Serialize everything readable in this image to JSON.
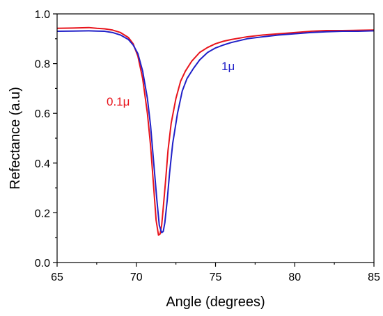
{
  "chart_data": {
    "type": "line",
    "xlabel": "Angle (degrees)",
    "ylabel": "Refectance (a.u)",
    "xlim": [
      65,
      85
    ],
    "ylim": [
      0.0,
      1.0
    ],
    "x_ticks": [
      65,
      70,
      75,
      80,
      85
    ],
    "x_tick_labels": [
      "65",
      "70",
      "75",
      "80",
      "85"
    ],
    "y_ticks": [
      0.0,
      0.2,
      0.4,
      0.6,
      0.8,
      1.0
    ],
    "y_tick_labels": [
      "0.0",
      "0.2",
      "0.4",
      "0.6",
      "0.8",
      "1.0"
    ],
    "grid": false,
    "annotations": [
      {
        "text": "0.1μ",
        "color": "#e8141c",
        "series": 0
      },
      {
        "text": "1μ",
        "color": "#2020c8",
        "series": 1
      }
    ],
    "series": [
      {
        "color": "#e8141c",
        "x": [
          65,
          66,
          67,
          67.5,
          68,
          68.5,
          69,
          69.5,
          69.8,
          70.1,
          70.4,
          70.7,
          70.9,
          71.1,
          71.25,
          71.4,
          71.5,
          71.6,
          71.7,
          71.85,
          72,
          72.2,
          72.5,
          72.8,
          73.1,
          73.5,
          74,
          74.5,
          75,
          75.5,
          76,
          77,
          78,
          79,
          80,
          81,
          82,
          83,
          84,
          85
        ],
        "y": [
          0.942,
          0.943,
          0.945,
          0.942,
          0.94,
          0.935,
          0.925,
          0.905,
          0.88,
          0.83,
          0.74,
          0.6,
          0.47,
          0.3,
          0.17,
          0.11,
          0.115,
          0.15,
          0.22,
          0.33,
          0.45,
          0.56,
          0.66,
          0.73,
          0.77,
          0.81,
          0.845,
          0.865,
          0.88,
          0.89,
          0.897,
          0.908,
          0.915,
          0.92,
          0.925,
          0.93,
          0.933,
          0.933,
          0.934,
          0.935
        ]
      },
      {
        "color": "#2020c8",
        "x": [
          65,
          66,
          67,
          67.5,
          68,
          68.5,
          69,
          69.5,
          69.8,
          70.1,
          70.4,
          70.7,
          70.9,
          71.1,
          71.3,
          71.45,
          71.6,
          71.7,
          71.8,
          71.95,
          72.1,
          72.3,
          72.6,
          72.9,
          73.2,
          73.6,
          74,
          74.5,
          75,
          75.5,
          76,
          77,
          78,
          79,
          80,
          81,
          82,
          83,
          84,
          85
        ],
        "y": [
          0.93,
          0.931,
          0.932,
          0.931,
          0.93,
          0.925,
          0.915,
          0.897,
          0.875,
          0.84,
          0.77,
          0.66,
          0.55,
          0.4,
          0.25,
          0.15,
          0.12,
          0.125,
          0.16,
          0.25,
          0.36,
          0.48,
          0.6,
          0.69,
          0.74,
          0.78,
          0.815,
          0.845,
          0.863,
          0.875,
          0.885,
          0.9,
          0.908,
          0.915,
          0.92,
          0.925,
          0.928,
          0.93,
          0.93,
          0.932
        ]
      }
    ]
  }
}
